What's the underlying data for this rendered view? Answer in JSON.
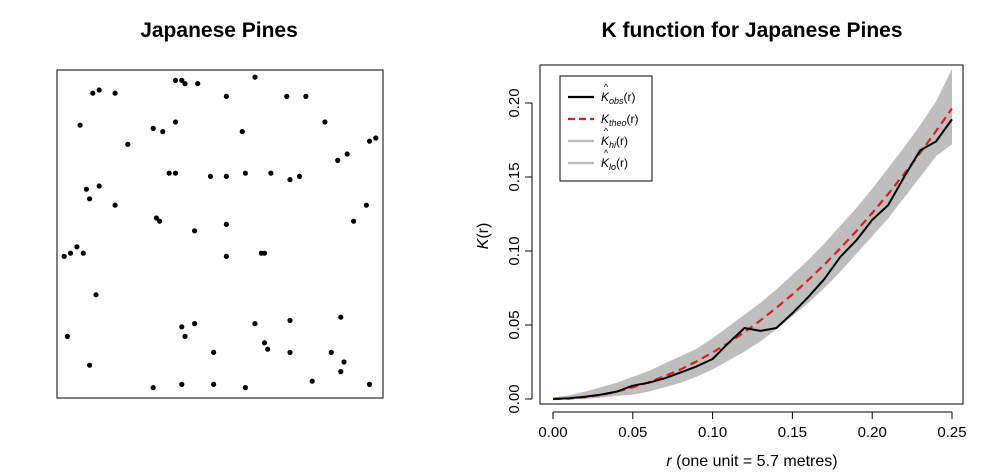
{
  "chart_data": [
    {
      "type": "scatter",
      "title": "Japanese Pines",
      "xlim": [
        0,
        1
      ],
      "ylim": [
        0,
        1
      ],
      "axes_visible": false,
      "box": true,
      "x": [
        0.1,
        0.12,
        0.17,
        0.36,
        0.38,
        0.39,
        0.43,
        0.52,
        0.61,
        0.71,
        0.77,
        0.83,
        0.06,
        0.21,
        0.29,
        0.32,
        0.36,
        0.57,
        0.9,
        0.97,
        0.99,
        0.87,
        0.72,
        0.34,
        0.36,
        0.47,
        0.52,
        0.58,
        0.66,
        0.75,
        0.08,
        0.09,
        0.12,
        0.17,
        0.3,
        0.31,
        0.42,
        0.52,
        0.63,
        0.92,
        0.96,
        0.03,
        0.05,
        0.01,
        0.07,
        0.52,
        0.64,
        0.11,
        0.02,
        0.09,
        0.38,
        0.42,
        0.48,
        0.61,
        0.64,
        0.65,
        0.72,
        0.72,
        0.85,
        0.88,
        0.89,
        0.88,
        0.39,
        0.48,
        0.29,
        0.38,
        0.58,
        0.79,
        0.97
      ],
      "y": [
        0.94,
        0.95,
        0.94,
        0.98,
        0.98,
        0.97,
        0.97,
        0.93,
        0.99,
        0.93,
        0.93,
        0.85,
        0.84,
        0.78,
        0.83,
        0.82,
        0.85,
        0.82,
        0.75,
        0.79,
        0.8,
        0.73,
        0.67,
        0.69,
        0.69,
        0.68,
        0.68,
        0.69,
        0.69,
        0.68,
        0.64,
        0.61,
        0.65,
        0.59,
        0.55,
        0.54,
        0.51,
        0.53,
        0.44,
        0.54,
        0.59,
        0.44,
        0.46,
        0.43,
        0.44,
        0.43,
        0.44,
        0.31,
        0.18,
        0.09,
        0.21,
        0.22,
        0.13,
        0.22,
        0.16,
        0.14,
        0.23,
        0.13,
        0.13,
        0.24,
        0.1,
        0.07,
        0.18,
        0.03,
        0.02,
        0.03,
        0.02,
        0.04,
        0.03
      ],
      "marker": "filled-circle",
      "color": "#000000"
    },
    {
      "type": "line",
      "title": "K function for Japanese Pines",
      "xlabel_italic": "r",
      "xlabel_rest": " (one unit = 5.7 metres)",
      "ylabel_italic": "K",
      "ylabel_rest": "(r)",
      "xlim": [
        0,
        0.25
      ],
      "ylim": [
        0,
        0.2
      ],
      "xticks": [
        0,
        0.05,
        0.1,
        0.15,
        0.2,
        0.25
      ],
      "xtick_labels": [
        "0.00",
        "0.05",
        "0.10",
        "0.15",
        "0.20",
        "0.25"
      ],
      "yticks": [
        0,
        0.05,
        0.1,
        0.15,
        0.2
      ],
      "ytick_labels": [
        "0.00",
        "0.05",
        "0.10",
        "0.15",
        "0.20"
      ],
      "legend_position": "top-left",
      "legend": [
        {
          "symbol": "K",
          "hat": "^",
          "sub": "obs",
          "suffix": "(r)",
          "color": "#000000",
          "dash": "solid"
        },
        {
          "symbol": "K",
          "hat": "",
          "sub": "theo",
          "suffix": "(r)",
          "color": "#e41a1c",
          "dash": "dashed"
        },
        {
          "symbol": "K",
          "hat": "^",
          "sub": "hi",
          "suffix": "(r)",
          "color": "#bbbbbb",
          "dash": "solid"
        },
        {
          "symbol": "K",
          "hat": "^",
          "sub": "lo",
          "suffix": "(r)",
          "color": "#bbbbbb",
          "dash": "solid"
        }
      ],
      "colors": {
        "obs": "#000000",
        "theo": "#e41a1c",
        "envelope": "#bebebe"
      },
      "series": [
        {
          "key": "obs",
          "x": [
            0,
            0.01,
            0.02,
            0.03,
            0.04,
            0.05,
            0.06,
            0.07,
            0.08,
            0.09,
            0.1,
            0.11,
            0.12,
            0.13,
            0.14,
            0.15,
            0.16,
            0.17,
            0.18,
            0.19,
            0.2,
            0.21,
            0.22,
            0.23,
            0.24,
            0.25
          ],
          "values": [
            0,
            0.0005,
            0.0015,
            0.003,
            0.005,
            0.009,
            0.011,
            0.014,
            0.018,
            0.022,
            0.027,
            0.038,
            0.048,
            0.046,
            0.048,
            0.058,
            0.069,
            0.081,
            0.096,
            0.107,
            0.121,
            0.131,
            0.15,
            0.168,
            0.174,
            0.189
          ]
        },
        {
          "key": "theo",
          "x": [
            0,
            0.01,
            0.02,
            0.03,
            0.04,
            0.05,
            0.06,
            0.07,
            0.08,
            0.09,
            0.1,
            0.11,
            0.12,
            0.13,
            0.14,
            0.15,
            0.16,
            0.17,
            0.18,
            0.19,
            0.2,
            0.21,
            0.22,
            0.23,
            0.24,
            0.25
          ],
          "values": [
            0,
            0.0003,
            0.0013,
            0.0028,
            0.005,
            0.0079,
            0.0113,
            0.0154,
            0.0201,
            0.0254,
            0.0314,
            0.038,
            0.0452,
            0.0531,
            0.0616,
            0.0707,
            0.0804,
            0.0908,
            0.1018,
            0.1134,
            0.1257,
            0.1385,
            0.1521,
            0.1662,
            0.181,
            0.1963
          ]
        },
        {
          "key": "hi",
          "x": [
            0,
            0.01,
            0.02,
            0.03,
            0.04,
            0.05,
            0.06,
            0.07,
            0.08,
            0.09,
            0.1,
            0.11,
            0.12,
            0.13,
            0.14,
            0.15,
            0.16,
            0.17,
            0.18,
            0.19,
            0.2,
            0.21,
            0.22,
            0.23,
            0.24,
            0.25
          ],
          "values": [
            0.001,
            0.0025,
            0.005,
            0.008,
            0.011,
            0.015,
            0.019,
            0.024,
            0.029,
            0.034,
            0.041,
            0.049,
            0.057,
            0.065,
            0.074,
            0.084,
            0.094,
            0.105,
            0.117,
            0.129,
            0.142,
            0.156,
            0.17,
            0.185,
            0.201,
            0.223
          ]
        },
        {
          "key": "lo",
          "x": [
            0,
            0.01,
            0.02,
            0.03,
            0.04,
            0.05,
            0.06,
            0.07,
            0.08,
            0.09,
            0.1,
            0.11,
            0.12,
            0.13,
            0.14,
            0.15,
            0.16,
            0.17,
            0.18,
            0.19,
            0.2,
            0.21,
            0.22,
            0.23,
            0.24,
            0.25
          ],
          "values": [
            0,
            0,
            0,
            0.001,
            0.002,
            0.003,
            0.005,
            0.008,
            0.011,
            0.015,
            0.02,
            0.026,
            0.032,
            0.039,
            0.047,
            0.056,
            0.065,
            0.075,
            0.086,
            0.098,
            0.11,
            0.122,
            0.136,
            0.15,
            0.164,
            0.172
          ]
        }
      ]
    }
  ]
}
